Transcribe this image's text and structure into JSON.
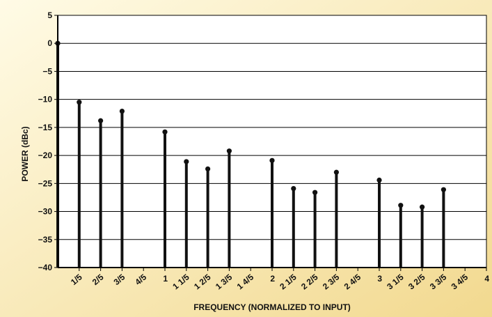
{
  "colors": {
    "background_light": "#fffbe6",
    "background_dark": "#f2d98f",
    "plot_bg": "#ffffff",
    "stem": "#111111",
    "grid": "#000000"
  },
  "chart_data": {
    "type": "stem",
    "xlabel": "FREQUENCY (NORMALIZED TO INPUT)",
    "ylabel": "POWER (dBc)",
    "xlim": [
      0,
      4
    ],
    "ylim": [
      -40,
      5
    ],
    "grid": "horizontal",
    "yticks": [
      5,
      0,
      -5,
      -10,
      -15,
      -20,
      -25,
      -30,
      -35,
      -40
    ],
    "ytick_labels": [
      "5",
      "0",
      "−5",
      "−10",
      "−15",
      "−20",
      "−25",
      "−30",
      "−35",
      "−40"
    ],
    "xticks": [
      0.2,
      0.4,
      0.6,
      0.8,
      1.0,
      1.2,
      1.4,
      1.6,
      1.8,
      2.0,
      2.2,
      2.4,
      2.6,
      2.8,
      3.0,
      3.2,
      3.4,
      3.6,
      3.8,
      4.0
    ],
    "xtick_labels": [
      "1/5",
      "2/5",
      "3/5",
      "4/5",
      "1",
      "1 1/5",
      "1 2/5",
      "1 3/5",
      "1 4/5",
      "2",
      "2 1/5",
      "2 2/5",
      "2 3/5",
      "2 4/5",
      "3",
      "3 1/5",
      "3 2/5",
      "3 3/5",
      "3 4/5",
      "4"
    ],
    "points": [
      {
        "x": 0.0,
        "y": 0
      },
      {
        "x": 0.2,
        "y": -10.5
      },
      {
        "x": 0.4,
        "y": -13.8
      },
      {
        "x": 0.6,
        "y": -12.1
      },
      {
        "x": 1.0,
        "y": -15.8
      },
      {
        "x": 1.2,
        "y": -21.1
      },
      {
        "x": 1.4,
        "y": -22.4
      },
      {
        "x": 1.6,
        "y": -19.2
      },
      {
        "x": 2.0,
        "y": -20.9
      },
      {
        "x": 2.2,
        "y": -25.9
      },
      {
        "x": 2.4,
        "y": -26.6
      },
      {
        "x": 2.6,
        "y": -23.0
      },
      {
        "x": 3.0,
        "y": -24.4
      },
      {
        "x": 3.2,
        "y": -28.9
      },
      {
        "x": 3.4,
        "y": -29.2
      },
      {
        "x": 3.6,
        "y": -26.1
      }
    ]
  }
}
